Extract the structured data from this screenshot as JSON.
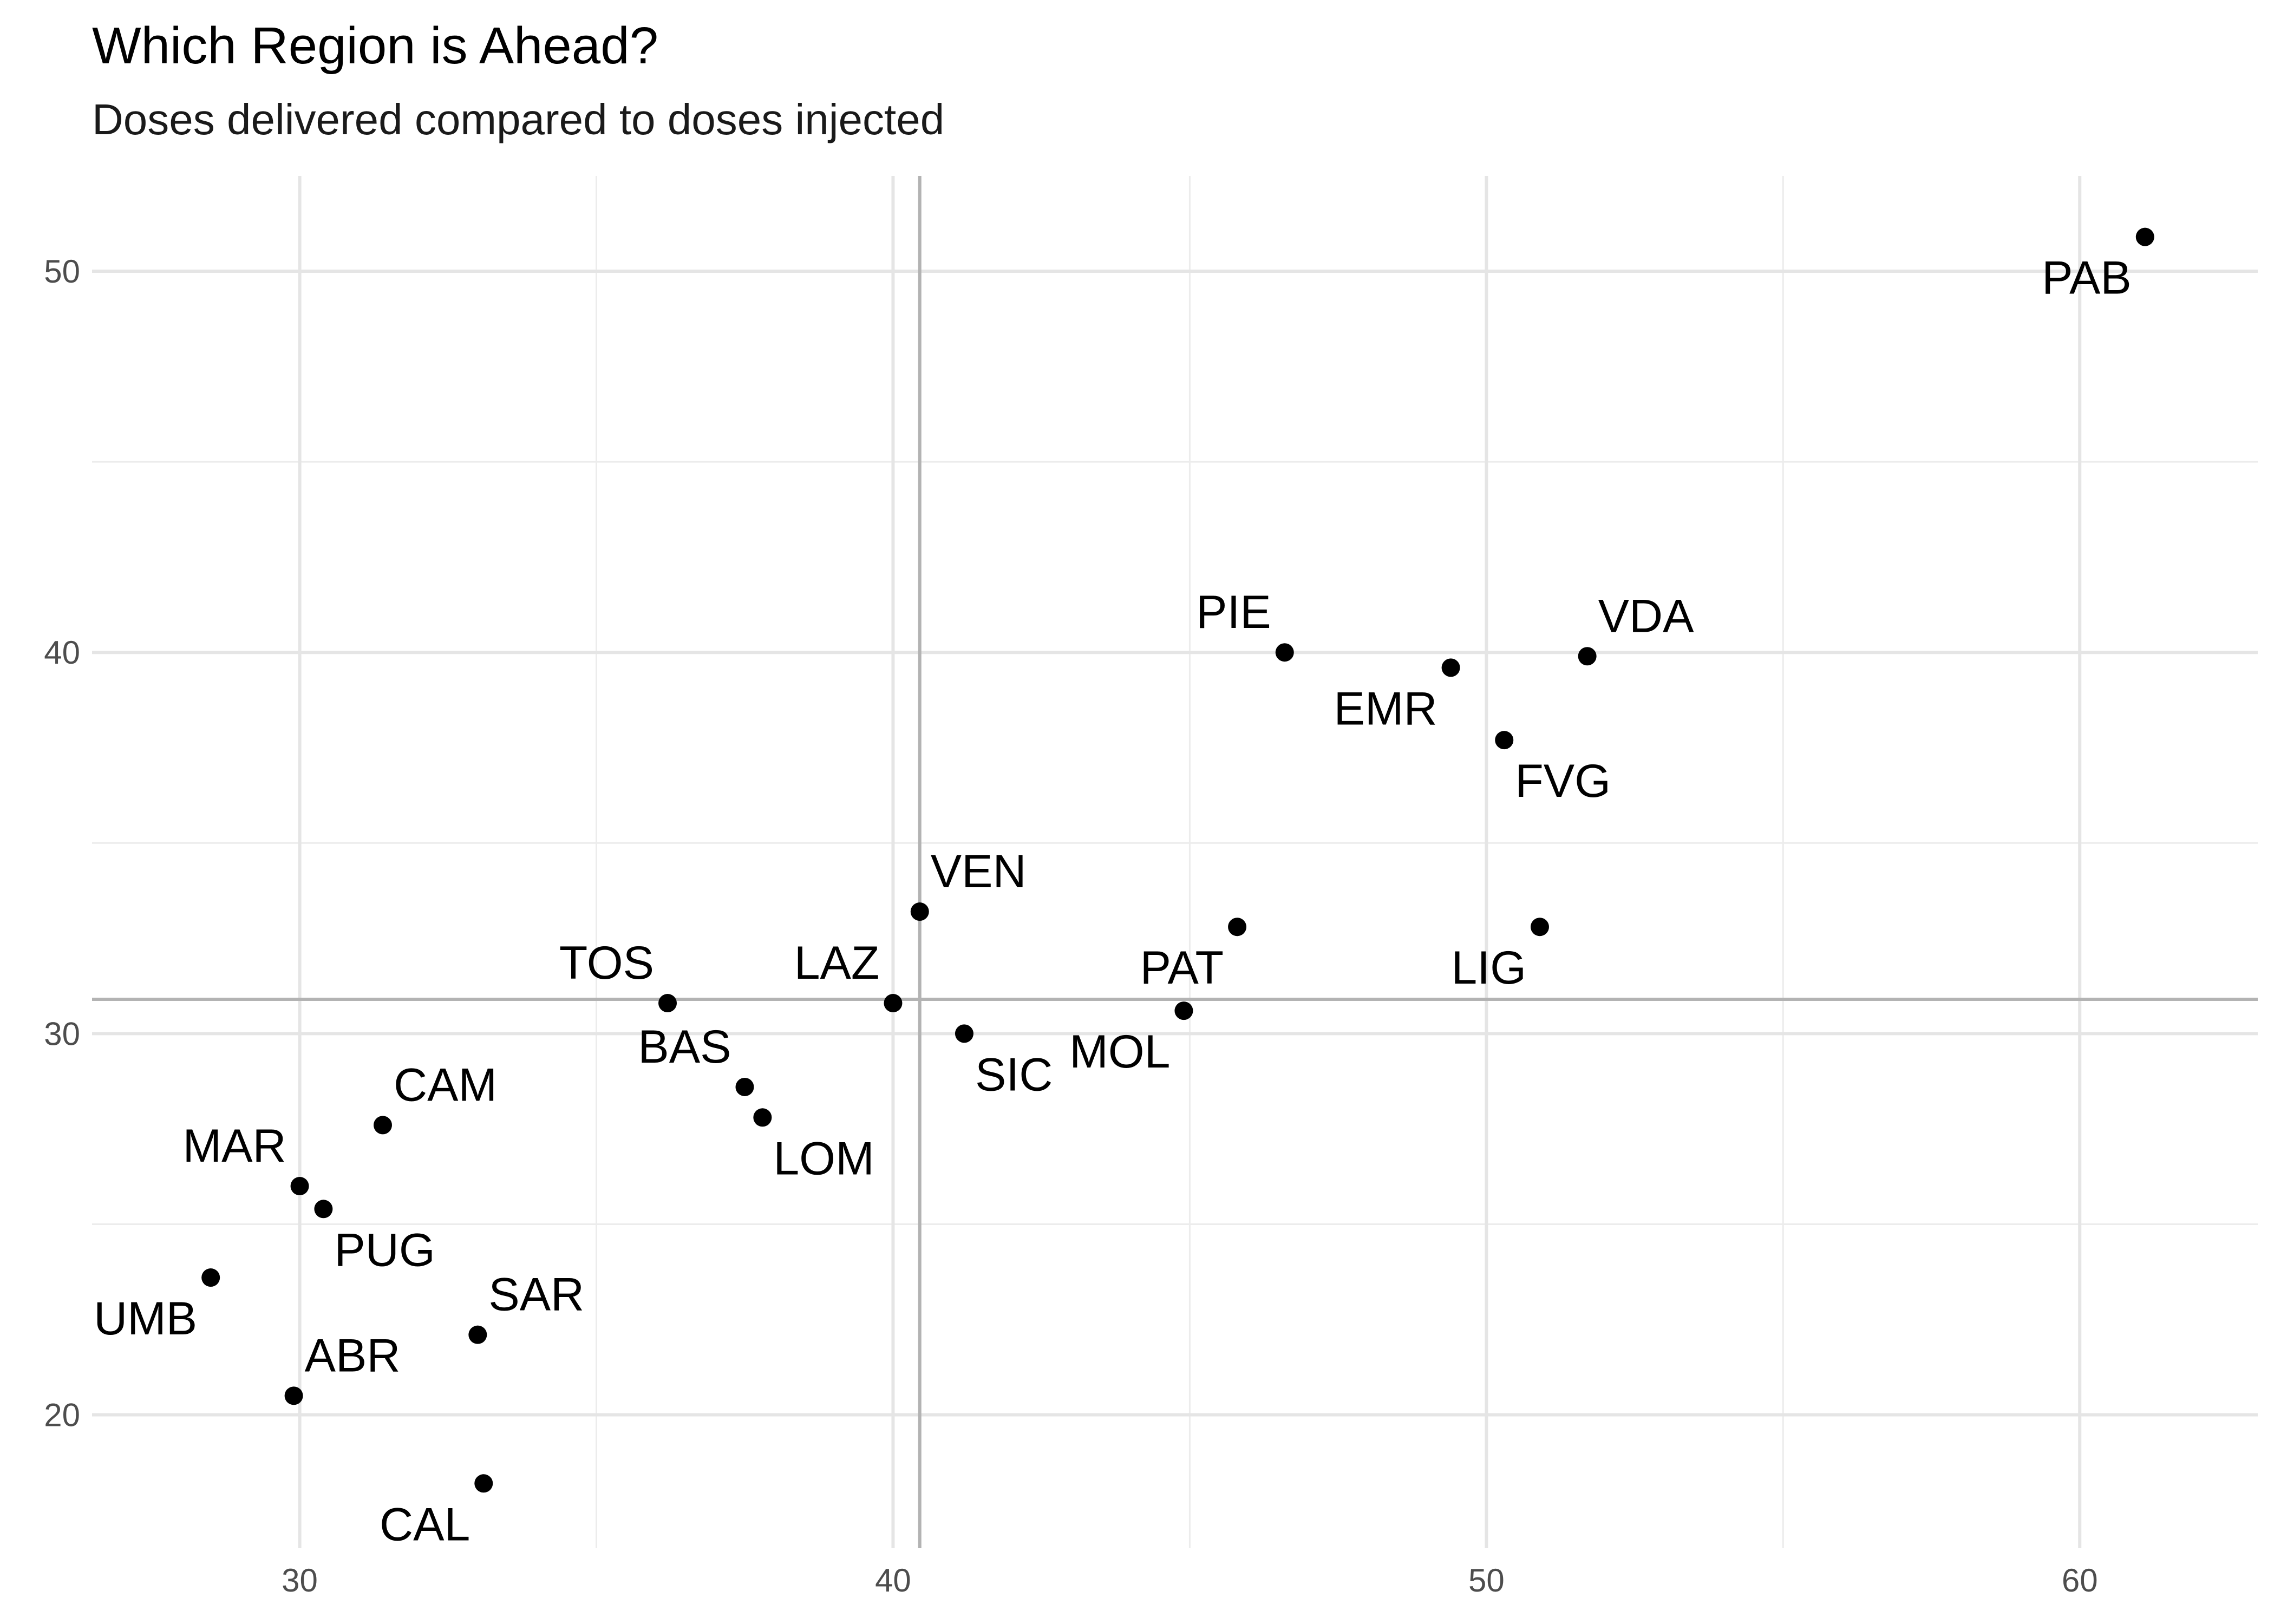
{
  "chart_data": {
    "type": "scatter",
    "title": "Which Region is Ahead?",
    "subtitle": "Doses delivered compared to doses injected",
    "xlabel": "",
    "ylabel": "",
    "xlim": [
      26.5,
      63.0
    ],
    "ylim": [
      16.5,
      52.5
    ],
    "x_ticks": [
      30,
      40,
      50,
      60
    ],
    "x_minor": [
      35,
      45,
      55
    ],
    "y_ticks": [
      20,
      30,
      40,
      50
    ],
    "y_minor": [
      25,
      35,
      45
    ],
    "grid": true,
    "reference_lines": {
      "x": 40.45,
      "y": 30.9
    },
    "points": [
      {
        "label": "PAB",
        "x": 61.1,
        "y": 50.9,
        "pos": "below-left"
      },
      {
        "label": "PIE",
        "x": 46.6,
        "y": 40.0,
        "pos": "above-left"
      },
      {
        "label": "VDA",
        "x": 51.7,
        "y": 39.9,
        "pos": "above-right"
      },
      {
        "label": "EMR",
        "x": 49.4,
        "y": 39.6,
        "pos": "below-left"
      },
      {
        "label": "FVG",
        "x": 50.3,
        "y": 37.7,
        "pos": "below-right"
      },
      {
        "label": "VEN",
        "x": 40.45,
        "y": 33.2,
        "pos": "above-right"
      },
      {
        "label": "PAT",
        "x": 45.8,
        "y": 32.8,
        "pos": "below-left"
      },
      {
        "label": "LIG",
        "x": 50.9,
        "y": 32.8,
        "pos": "below-left"
      },
      {
        "label": "TOS",
        "x": 36.2,
        "y": 30.8,
        "pos": "above-left"
      },
      {
        "label": "LAZ",
        "x": 40.0,
        "y": 30.8,
        "pos": "above-left"
      },
      {
        "label": "MOL",
        "x": 44.9,
        "y": 30.6,
        "pos": "below-left"
      },
      {
        "label": "SIC",
        "x": 41.2,
        "y": 30.0,
        "pos": "below-right"
      },
      {
        "label": "BAS",
        "x": 37.5,
        "y": 28.6,
        "pos": "above-left"
      },
      {
        "label": "LOM",
        "x": 37.8,
        "y": 27.8,
        "pos": "below-right"
      },
      {
        "label": "CAM",
        "x": 31.4,
        "y": 27.6,
        "pos": "above-right"
      },
      {
        "label": "MAR",
        "x": 30.0,
        "y": 26.0,
        "pos": "above-left"
      },
      {
        "label": "PUG",
        "x": 30.4,
        "y": 25.4,
        "pos": "below-right"
      },
      {
        "label": "UMB",
        "x": 28.5,
        "y": 23.6,
        "pos": "below-left"
      },
      {
        "label": "SAR",
        "x": 33.0,
        "y": 22.1,
        "pos": "above-right"
      },
      {
        "label": "ABR",
        "x": 29.9,
        "y": 20.5,
        "pos": "above-right"
      },
      {
        "label": "CAL",
        "x": 33.1,
        "y": 18.2,
        "pos": "below-left"
      }
    ]
  }
}
